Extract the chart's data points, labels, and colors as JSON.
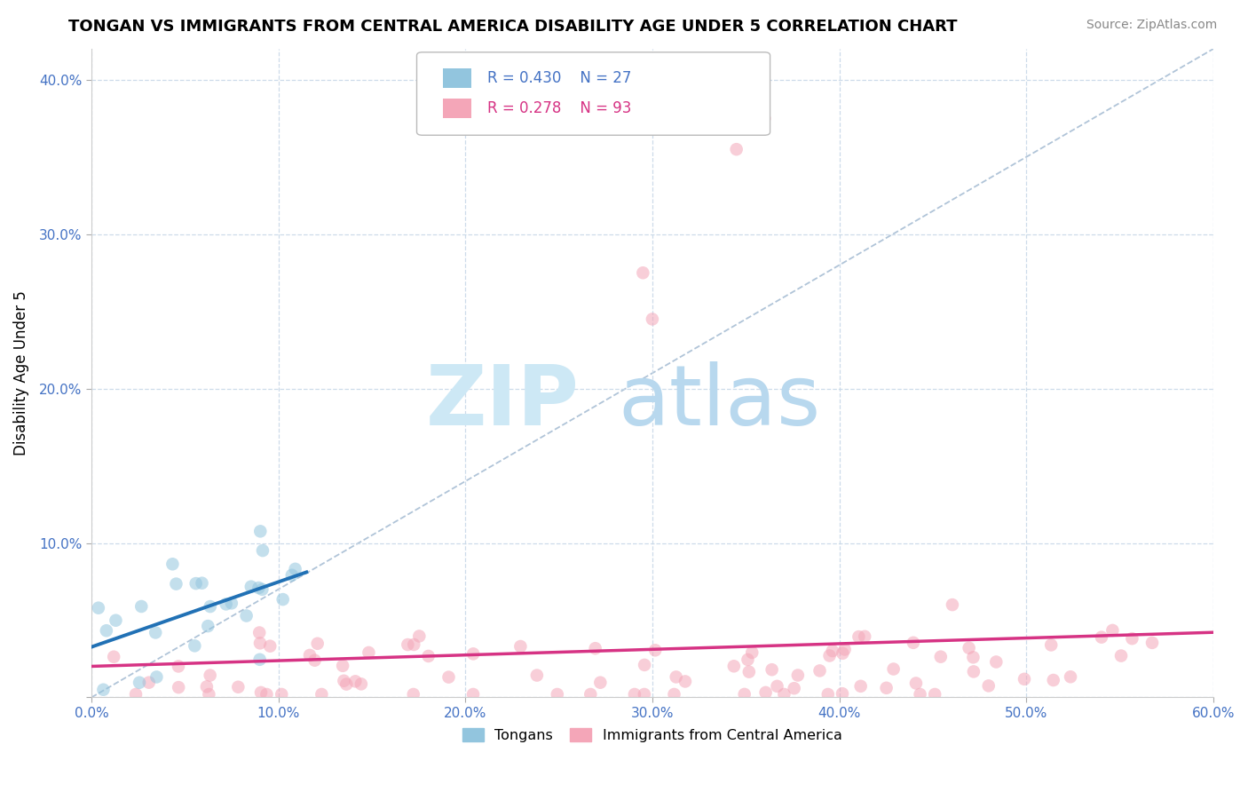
{
  "title": "TONGAN VS IMMIGRANTS FROM CENTRAL AMERICA DISABILITY AGE UNDER 5 CORRELATION CHART",
  "source": "Source: ZipAtlas.com",
  "ylabel": "Disability Age Under 5",
  "xlim": [
    0,
    0.6
  ],
  "ylim": [
    0,
    0.42
  ],
  "color_tongan": "#92c5de",
  "color_central": "#f4a6b8",
  "color_trendline_tongan": "#2171b5",
  "color_trendline_central": "#d63384",
  "color_refline": "#b0c4d8",
  "background_color": "#ffffff",
  "watermark_zip": "ZIP",
  "watermark_atlas": "atlas",
  "watermark_color_zip": "#cde8f5",
  "watermark_color_atlas": "#b8d8ee",
  "marker_size": 110,
  "marker_alpha": 0.55,
  "grid_color": "#c8d8e8",
  "grid_linestyle": "--",
  "grid_alpha": 0.9,
  "r_tongan": 0.43,
  "n_tongan": 27,
  "r_central": 0.278,
  "n_central": 93,
  "tick_color": "#4472c4",
  "tick_fontsize": 11,
  "legend_color_r": "#4472c4",
  "legend_color_pink": "#d63384"
}
